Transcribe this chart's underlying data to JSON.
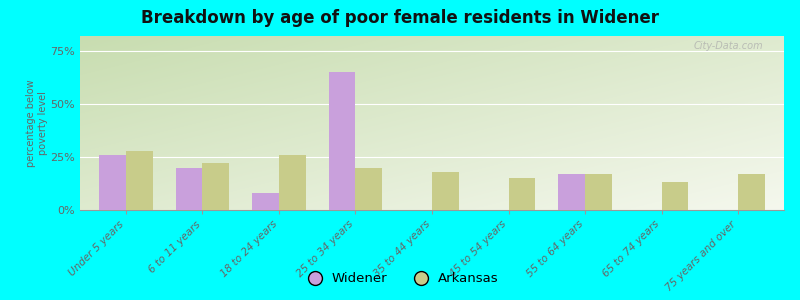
{
  "title": "Breakdown by age of poor female residents in Widener",
  "categories": [
    "Under 5 years",
    "6 to 11 years",
    "18 to 24 years",
    "25 to 34 years",
    "35 to 44 years",
    "45 to 54 years",
    "55 to 64 years",
    "65 to 74 years",
    "75 years and over"
  ],
  "widener_values": [
    26,
    20,
    8,
    65,
    0,
    0,
    17,
    0,
    0
  ],
  "arkansas_values": [
    28,
    22,
    26,
    20,
    18,
    15,
    17,
    13,
    17
  ],
  "widener_color": "#c9a0dc",
  "arkansas_color": "#c8cc8a",
  "ylabel": "percentage below\npoverty level",
  "ylim": [
    0,
    82
  ],
  "yticks": [
    0,
    25,
    50,
    75
  ],
  "ytick_labels": [
    "0%",
    "25%",
    "50%",
    "75%"
  ],
  "background_color": "#00ffff",
  "plot_bg_top_left": "#c8ddb0",
  "plot_bg_bottom_right": "#f5f8ee",
  "legend_widener": "Widener",
  "legend_arkansas": "Arkansas",
  "bar_width": 0.35,
  "watermark": "City-Data.com"
}
